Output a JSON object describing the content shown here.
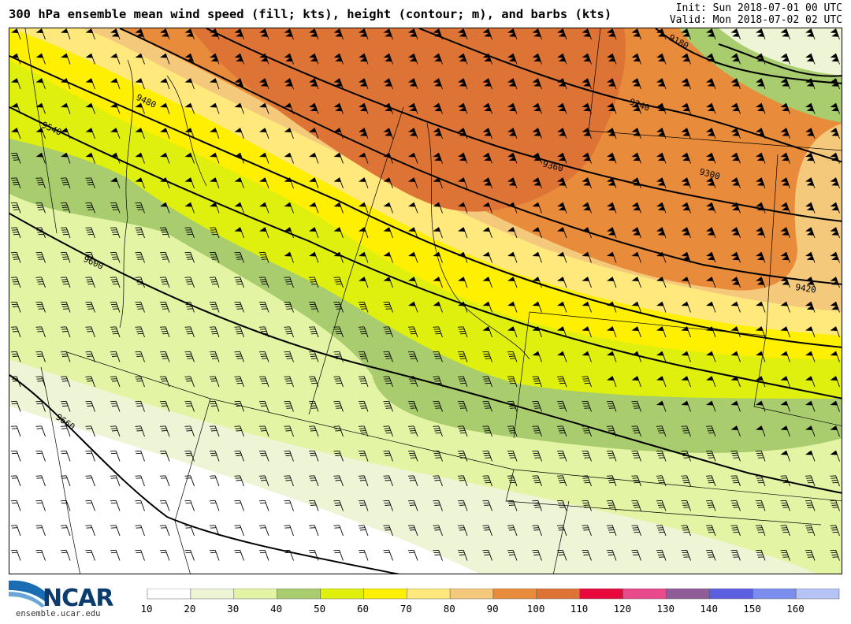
{
  "header": {
    "title": "300 hPa ensemble mean wind speed (fill; kts), height (contour; m), and barbs (kts)",
    "init": "Init: Sun 2018-07-01 00 UTC",
    "valid": "Valid: Mon 2018-07-02 02 UTC"
  },
  "map": {
    "height_contours_m": [
      "9180",
      "9240",
      "9300",
      "9360",
      "9420",
      "9480",
      "9540",
      "9600",
      "9660"
    ],
    "speed_bands": [
      {
        "range": "10-20",
        "color": "#ffffff"
      },
      {
        "range": "20-30",
        "color": "#eef5d6"
      },
      {
        "range": "30-40",
        "color": "#e3f4a4"
      },
      {
        "range": "40-50",
        "color": "#a8cc6e"
      },
      {
        "range": "50-60",
        "color": "#dff00e"
      },
      {
        "range": "60-70",
        "color": "#ffef00"
      },
      {
        "range": "70-80",
        "color": "#ffe97d"
      },
      {
        "range": "80-90",
        "color": "#f5c97c"
      },
      {
        "range": "90-100",
        "color": "#e88b3a"
      },
      {
        "range": "100-110",
        "color": "#dd7436"
      }
    ]
  },
  "colorbar": {
    "labels": [
      "10",
      "20",
      "30",
      "40",
      "50",
      "60",
      "70",
      "80",
      "90",
      "100",
      "110",
      "120",
      "130",
      "140",
      "150",
      "160"
    ],
    "colors": [
      "#ffffff",
      "#eef5d6",
      "#e3f4a4",
      "#a8cc6e",
      "#dff00e",
      "#ffef00",
      "#ffe97d",
      "#f5c97c",
      "#e88b3a",
      "#dd7436",
      "#e8083c",
      "#e84a8c",
      "#8e5c96",
      "#5c60e0",
      "#7b8ef0",
      "#b5c3f5"
    ]
  },
  "logo": {
    "name": "NCAR",
    "url": "ensemble.ucar.edu"
  }
}
